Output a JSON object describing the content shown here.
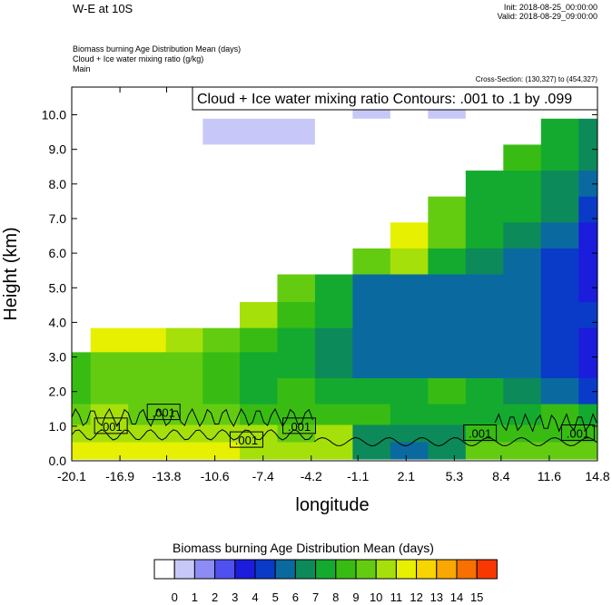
{
  "header": {
    "title": "W-E at 10S",
    "init": "Init: 2018-08-25_00:00:00",
    "valid": "Valid: 2018-08-29_09:00:00",
    "fields": [
      "Biomass burning Age Distribution Mean    (days)",
      "Cloud + Ice water mixing ratio    (g/kg)",
      "Main"
    ],
    "cross_section": "Cross-Section: (130,327) to (454,327)"
  },
  "colors": {
    "scale": [
      "#ffffff",
      "#c8c8f8",
      "#8c8cf4",
      "#5050f0",
      "#1c1cdc",
      "#0a3ac8",
      "#0a6aa0",
      "#0c8a5a",
      "#14aa30",
      "#38bc14",
      "#64cc10",
      "#a6e00a",
      "#e6f000",
      "#f8d400",
      "#f8a800",
      "#f87000",
      "#f83800",
      "#f00000"
    ],
    "background": "#ffffff"
  },
  "chart_data": {
    "type": "heatmap",
    "title": "Cloud + Ice water mixing ratio Contours: .001 to .1 by .099",
    "xlabel": "longitude",
    "ylabel": "Height (km)",
    "x_ticks": [
      "-20.1",
      "-16.9",
      "-13.8",
      "-10.6",
      "-7.4",
      "-4.2",
      "-1.1",
      "2.1",
      "5.3",
      "8.4",
      "11.6",
      "14.8"
    ],
    "y_ticks": [
      "0.0",
      "1.0",
      "2.0",
      "3.0",
      "4.0",
      "5.0",
      "6.0",
      "7.0",
      "8.0",
      "9.0",
      "10.0"
    ],
    "xlim": [
      -20.1,
      14.8
    ],
    "ylim": [
      0,
      10.8
    ],
    "colorbar_title": "Biomass burning Age Distribution Mean  (days)",
    "colorbar_labels": [
      "0",
      "1",
      "2",
      "3",
      "4",
      "5",
      "6",
      "7",
      "8",
      "9",
      "10",
      "11",
      "12",
      "13",
      "14",
      "15"
    ],
    "contour_labels": [
      {
        "x": -17.5,
        "y": 1.0,
        "text": ".001"
      },
      {
        "x": -14.0,
        "y": 1.4,
        "text": ".001"
      },
      {
        "x": -8.5,
        "y": 0.6,
        "text": ".001"
      },
      {
        "x": -5.0,
        "y": 1.0,
        "text": ".001"
      },
      {
        "x": 7.0,
        "y": 0.8,
        "text": ".001"
      },
      {
        "x": 13.5,
        "y": 0.8,
        "text": ".001"
      }
    ],
    "age_field": {
      "x": [
        -20.1,
        -17.6,
        -15.1,
        -12.6,
        -10.2,
        -7.7,
        -5.2,
        -2.7,
        -0.2,
        2.3,
        4.8,
        7.3,
        9.8,
        12.3,
        14.8
      ],
      "y": [
        0.3,
        0.8,
        1.3,
        2.0,
        2.8,
        3.5,
        4.2,
        5.0,
        5.8,
        6.5,
        7.3,
        8.0,
        8.8,
        9.5,
        10.3
      ],
      "z": [
        [
          12,
          12,
          12,
          12,
          12,
          11,
          11,
          11,
          7,
          6,
          7,
          10,
          10,
          10,
          10
        ],
        [
          11,
          11,
          11,
          11,
          11,
          11,
          10,
          11,
          7,
          7,
          7,
          9,
          9,
          9,
          9
        ],
        [
          10,
          11,
          10,
          10,
          10,
          9,
          9,
          9,
          9,
          8,
          8,
          8,
          8,
          9,
          8
        ],
        [
          9,
          10,
          10,
          10,
          9,
          8,
          9,
          8,
          8,
          8,
          9,
          8,
          7,
          6,
          5
        ],
        [
          9,
          10,
          10,
          10,
          9,
          8,
          8,
          7,
          6,
          6,
          6,
          6,
          6,
          5,
          4
        ],
        [
          0,
          12,
          12,
          11,
          10,
          9,
          8,
          7,
          6,
          6,
          6,
          6,
          6,
          5,
          4
        ],
        [
          0,
          0,
          0,
          0,
          0,
          11,
          9,
          8,
          6,
          6,
          6,
          6,
          6,
          5,
          5
        ],
        [
          0,
          0,
          0,
          0,
          0,
          0,
          10,
          8,
          6,
          6,
          6,
          6,
          6,
          5,
          4
        ],
        [
          0,
          0,
          0,
          0,
          0,
          0,
          0,
          0,
          10,
          11,
          8,
          7,
          6,
          5,
          4
        ],
        [
          0,
          0,
          0,
          0,
          0,
          0,
          0,
          0,
          0,
          12,
          10,
          8,
          7,
          6,
          4
        ],
        [
          0,
          0,
          0,
          0,
          0,
          0,
          0,
          0,
          0,
          0,
          10,
          8,
          8,
          7,
          5
        ],
        [
          0,
          0,
          0,
          0,
          0,
          0,
          0,
          0,
          0,
          0,
          0,
          8,
          8,
          7,
          6
        ],
        [
          0,
          0,
          0,
          0,
          0,
          0,
          0,
          0,
          0,
          0,
          0,
          0,
          9,
          8,
          7
        ],
        [
          0,
          0,
          0,
          0,
          1,
          1,
          1,
          0,
          0,
          0,
          0,
          0,
          0,
          8,
          7
        ],
        [
          0,
          0,
          0,
          0,
          0,
          0,
          0,
          0,
          1,
          0,
          1,
          0,
          0,
          0,
          0
        ]
      ]
    }
  }
}
